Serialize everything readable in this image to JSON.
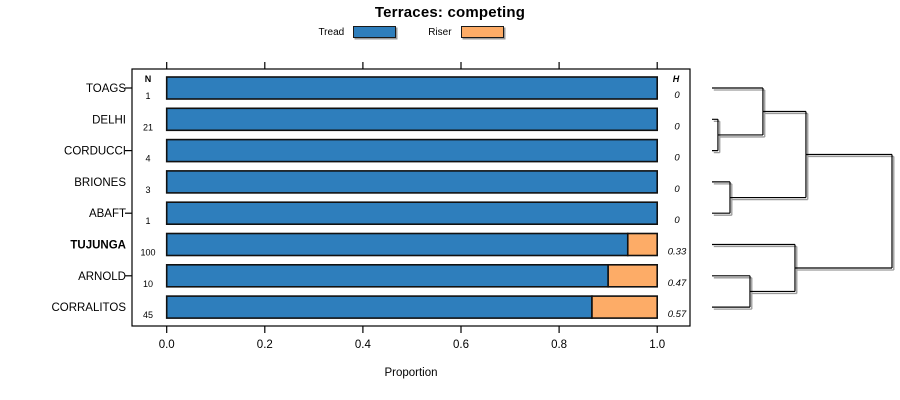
{
  "title": "Terraces: competing",
  "legend": {
    "items": [
      {
        "label": "Tread",
        "color": "#2e7ebc"
      },
      {
        "label": "Riser",
        "color": "#fdac67"
      }
    ]
  },
  "xlabel": "Proportion",
  "chart_data": {
    "type": "bar",
    "orientation": "horizontal",
    "stacked": true,
    "title": "Terraces: competing",
    "xlabel": "Proportion",
    "xlim": [
      0.0,
      1.0
    ],
    "x_ticks": [
      "0.0",
      "0.2",
      "0.4",
      "0.6",
      "0.8",
      "1.0"
    ],
    "grid": false,
    "legend_position": "top",
    "categories": [
      "TOAGS",
      "DELHI",
      "CORDUCCI",
      "BRIONES",
      "ABAFT",
      "TUJUNGA",
      "ARNOLD",
      "CORRALITOS"
    ],
    "bold_category": "TUJUNGA",
    "n_header": "N",
    "h_header": "H",
    "n_values": [
      "1",
      "21",
      "4",
      "3",
      "1",
      "100",
      "10",
      "45"
    ],
    "h_values": [
      "0",
      "0",
      "0",
      "0",
      "0",
      "0.33",
      "0.47",
      "0.57"
    ],
    "series": [
      {
        "name": "Tread",
        "color": "#2e7ebc",
        "values": [
          1.0,
          1.0,
          1.0,
          1.0,
          1.0,
          0.94,
          0.9,
          0.867
        ]
      },
      {
        "name": "Riser",
        "color": "#fdac67",
        "values": [
          0.0,
          0.0,
          0.0,
          0.0,
          0.0,
          0.06,
          0.1,
          0.133
        ]
      }
    ],
    "dendrogram": {
      "leaf_order": [
        "TOAGS",
        "DELHI",
        "CORDUCCI",
        "BRIONES",
        "ABAFT",
        "TUJUNGA",
        "ARNOLD",
        "CORRALITOS"
      ],
      "merges": [
        {
          "id": "m1",
          "children": [
            "DELHI",
            "CORDUCCI"
          ],
          "height": 0.033
        },
        {
          "id": "m2",
          "children": [
            "TOAGS",
            "m1"
          ],
          "height": 0.283
        },
        {
          "id": "m3",
          "children": [
            "BRIONES",
            "ABAFT"
          ],
          "height": 0.1
        },
        {
          "id": "m4",
          "children": [
            "m2",
            "m3"
          ],
          "height": 0.522
        },
        {
          "id": "m5",
          "children": [
            "ARNOLD",
            "CORRALITOS"
          ],
          "height": 0.211
        },
        {
          "id": "m6",
          "children": [
            "TUJUNGA",
            "m5"
          ],
          "height": 0.461
        },
        {
          "id": "m7",
          "children": [
            "m4",
            "m6"
          ],
          "height": 1.0
        }
      ]
    }
  }
}
